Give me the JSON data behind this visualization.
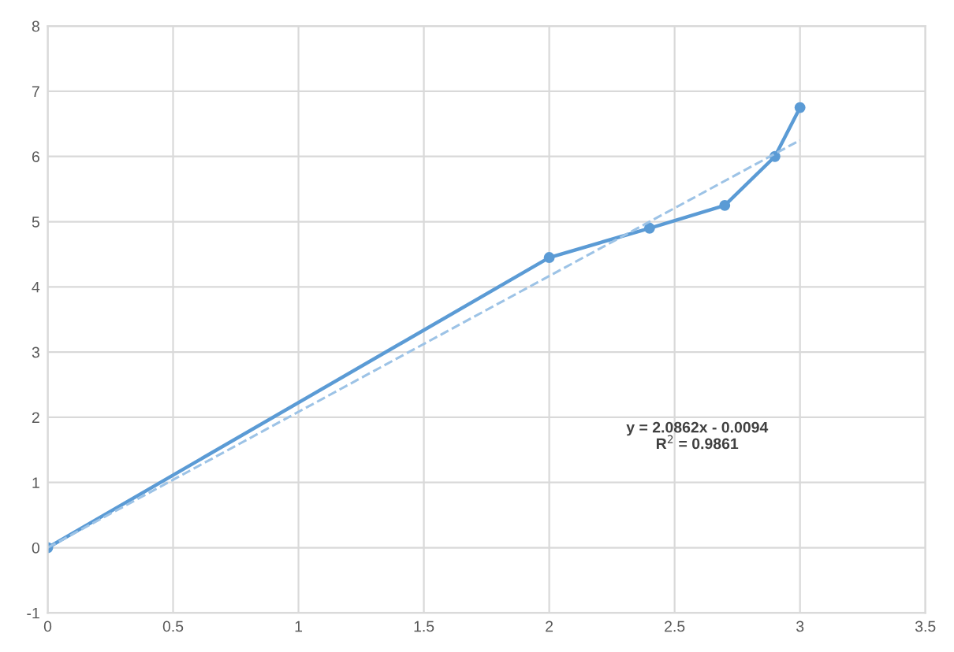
{
  "chart_data": {
    "type": "line",
    "xlim": [
      0,
      3.5
    ],
    "xticks": [
      0,
      0.5,
      1,
      1.5,
      2,
      2.5,
      3,
      3.5
    ],
    "ylim": [
      -1,
      8
    ],
    "yticks": [
      -1,
      0,
      1,
      2,
      3,
      4,
      5,
      6,
      7,
      8
    ],
    "grid": true,
    "series": [
      {
        "type": "line",
        "color": "#5b9bd5",
        "x": [
          0,
          2,
          2.4,
          2.7,
          2.9,
          3
        ],
        "values": [
          0,
          4.45,
          4.9,
          5.25,
          6.0,
          6.75
        ],
        "marker": "circle",
        "line_style": "solid"
      },
      {
        "type": "line",
        "color": "#9dc3e6",
        "x": [
          0,
          3
        ],
        "values": [
          0,
          6.25
        ],
        "marker": "none",
        "line_style": "dashed"
      }
    ],
    "annotations": [
      "y = 2.0862x - 0.0094\nR$^{2}$ = 0.9861"
    ]
  }
}
